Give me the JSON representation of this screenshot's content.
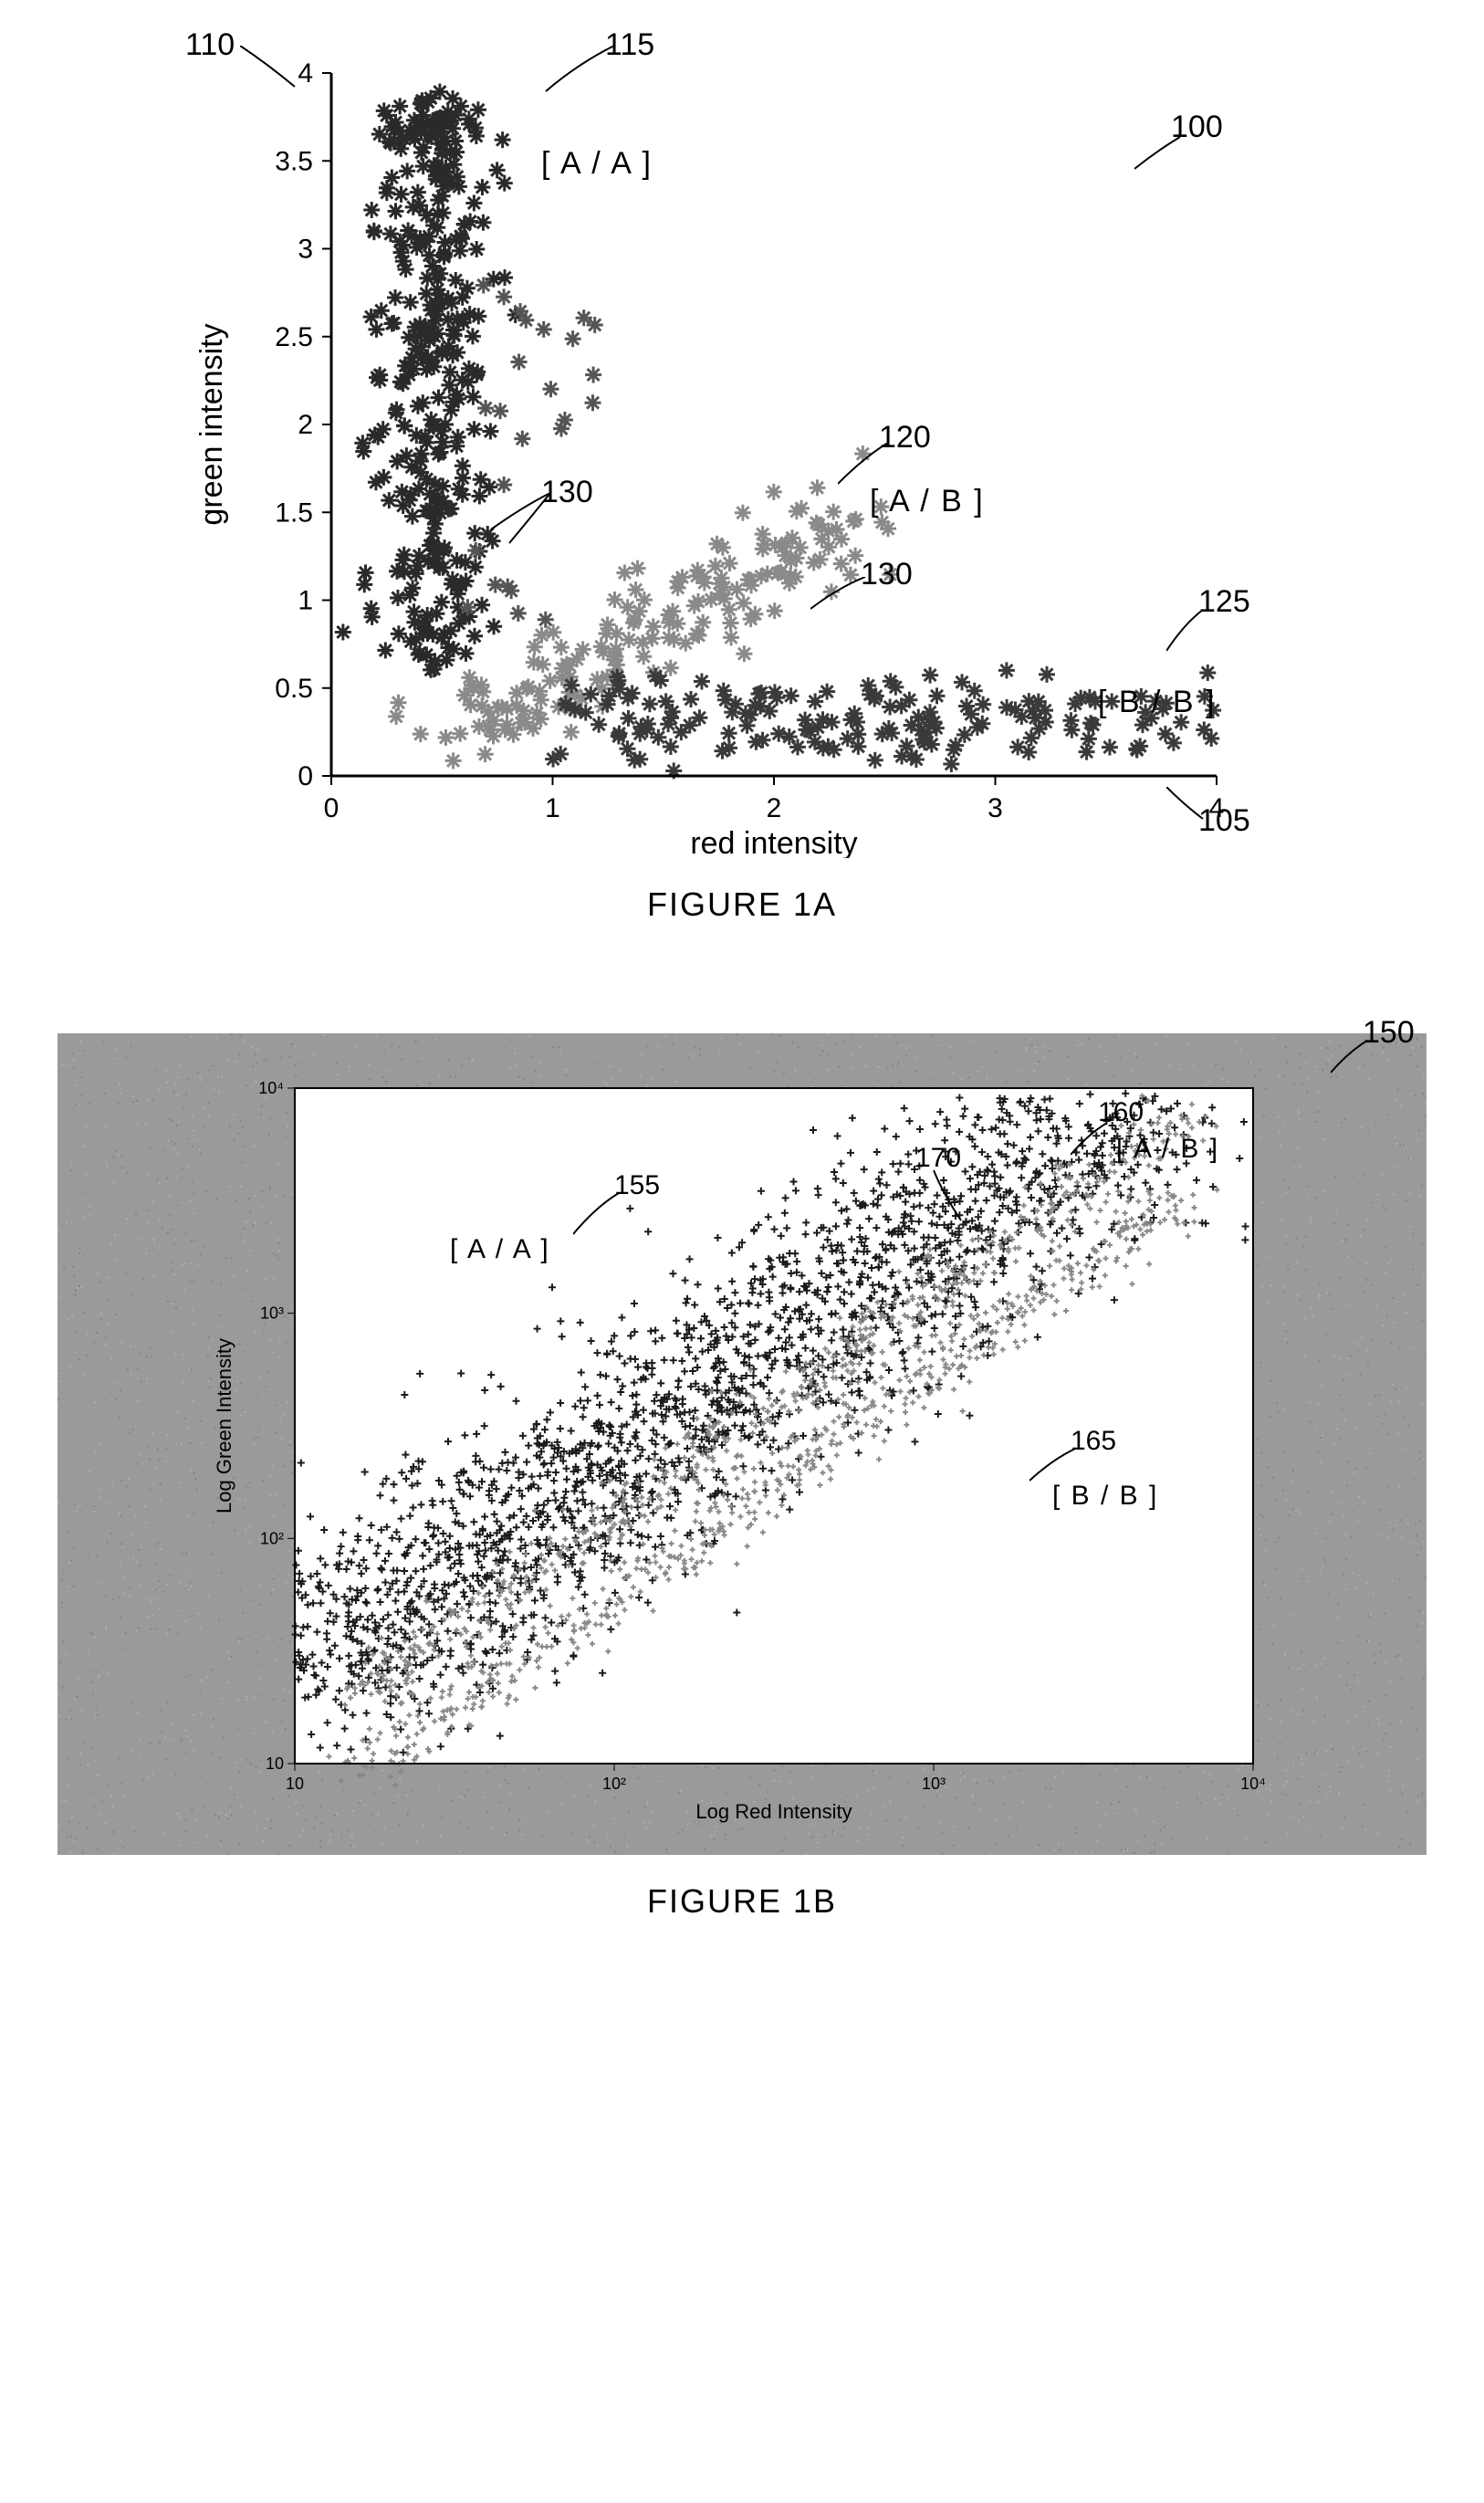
{
  "figureA": {
    "caption": "FIGURE 1A",
    "type": "scatter",
    "xlabel": "red intensity",
    "ylabel": "green intensity",
    "xlim": [
      0,
      4
    ],
    "ylim": [
      0,
      4
    ],
    "xticks": [
      0,
      1,
      2,
      3,
      4
    ],
    "yticks": [
      0,
      0.5,
      1,
      1.5,
      2,
      2.5,
      3,
      3.5,
      4
    ],
    "plot_bg": "#ffffff",
    "axis_color": "#000000",
    "tick_fontsize": 30,
    "label_fontsize": 34,
    "marker": "asterisk",
    "marker_size": 14,
    "clusters": {
      "AA": {
        "color": "#2a2a2a",
        "label": "[ A / A ]"
      },
      "AB": {
        "color": "#8a8a8a",
        "label": "[ A / B ]"
      },
      "BB": {
        "color": "#3a3a3a",
        "label": "[ B / B ]"
      }
    },
    "callouts": {
      "c110": "110",
      "c115": "115",
      "c100": "100",
      "c120": "120",
      "c125": "125",
      "c130a": "130",
      "c130b": "130",
      "c105": "105"
    }
  },
  "figureB": {
    "caption": "FIGURE 1B",
    "type": "scatter",
    "xlabel": "Log Red Intensity",
    "ylabel": "Log Green Intensity",
    "xscale": "log",
    "yscale": "log",
    "xlim": [
      1,
      10000
    ],
    "ylim": [
      1,
      10000
    ],
    "xticks": [
      10,
      100,
      1000,
      10000
    ],
    "yticks": [
      10,
      100,
      1000,
      10000
    ],
    "xtick_labels": [
      "10",
      "10²",
      "10³",
      "10⁴"
    ],
    "ytick_labels": [
      "10",
      "10²",
      "10³",
      "10⁴"
    ],
    "outer_bg": "#9a9a9a",
    "plot_bg": "#ffffff",
    "tick_fontsize": 18,
    "label_fontsize": 22,
    "marker": "plus",
    "marker_size": 6,
    "noise_color": "#777777",
    "clusters": {
      "AA": {
        "color": "#1a1a1a",
        "label": "[ A / A ]"
      },
      "AB": {
        "color": "#888888",
        "label": "[ A / B ]"
      },
      "BB": {
        "color": "#888888",
        "label": "[ B / B ]"
      }
    },
    "callouts": {
      "c150": "150",
      "c155": "155",
      "c160": "160",
      "c165": "165",
      "c170": "170"
    }
  }
}
